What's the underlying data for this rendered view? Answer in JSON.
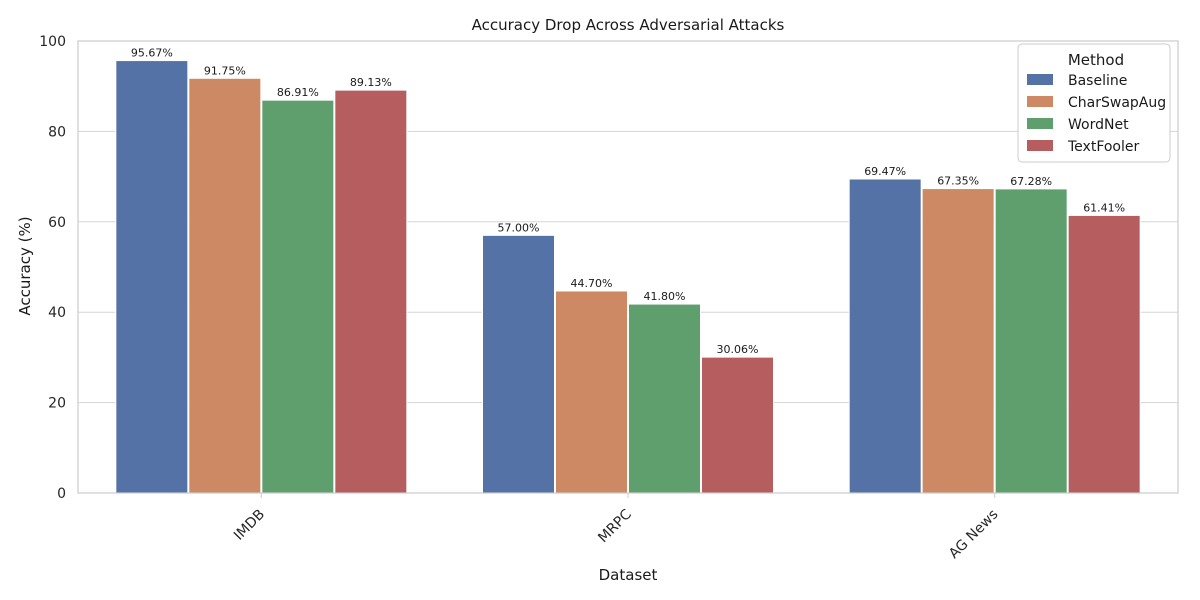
{
  "chart_data": {
    "type": "bar",
    "title": "Accuracy Drop Across Adversarial Attacks",
    "xlabel": "Dataset",
    "ylabel": "Accuracy (%)",
    "categories": [
      "IMDB",
      "MRPC",
      "AG News"
    ],
    "series": [
      {
        "name": "Baseline",
        "color": "#5572a6",
        "values": [
          95.67,
          57.0,
          69.47
        ]
      },
      {
        "name": "CharSwapAug",
        "color": "#cc8963",
        "values": [
          91.75,
          44.7,
          67.35
        ]
      },
      {
        "name": "WordNet",
        "color": "#5f9f6e",
        "values": [
          86.91,
          41.8,
          67.28
        ]
      },
      {
        "name": "TextFooler",
        "color": "#b65d60",
        "values": [
          89.13,
          30.06,
          61.41
        ]
      }
    ],
    "data_labels": [
      [
        "95.67%",
        "57.00%",
        "69.47%"
      ],
      [
        "91.75%",
        "44.70%",
        "67.35%"
      ],
      [
        "86.91%",
        "41.80%",
        "67.28%"
      ],
      [
        "89.13%",
        "30.06%",
        "61.41%"
      ]
    ],
    "yticks": [
      0,
      20,
      40,
      60,
      80,
      100
    ],
    "ylim": [
      0,
      100
    ],
    "grid": "horizontal",
    "legend": {
      "title": "Method",
      "placement": "top-right"
    }
  }
}
